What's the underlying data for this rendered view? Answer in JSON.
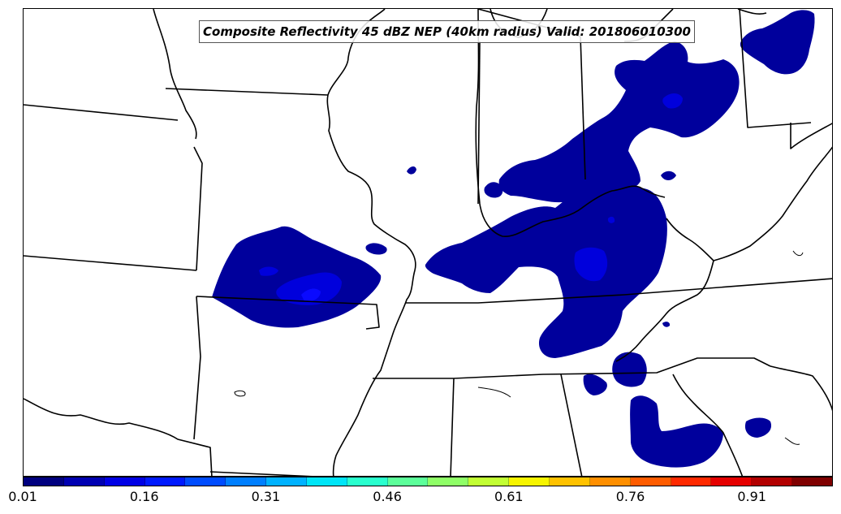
{
  "map": {
    "title": "Composite Reflectivity 45 dBZ NEP (40km radius) Valid: 201806010300",
    "field": "Neighborhood exceedance probability",
    "colors": {
      "probability_low": "#00009c",
      "probability_mid": "#0000dc",
      "probability_high": "#0a0aff",
      "borders": "#000000",
      "background": "#ffffff"
    }
  },
  "colorbar": {
    "colors": [
      "#00007f",
      "#0000b2",
      "#0000e5",
      "#0019ff",
      "#004cff",
      "#007fff",
      "#00b2ff",
      "#00e5f7",
      "#29ffce",
      "#5cff9a",
      "#8fff67",
      "#c2ff33",
      "#f7f500",
      "#ffc200",
      "#ff8f00",
      "#ff5c00",
      "#ff2900",
      "#e50000",
      "#b20000",
      "#7f0000"
    ],
    "tick_labels": [
      {
        "label": "0.01",
        "value": 0.01
      },
      {
        "label": "0.16",
        "value": 0.16
      },
      {
        "label": "0.31",
        "value": 0.31
      },
      {
        "label": "0.46",
        "value": 0.46
      },
      {
        "label": "0.61",
        "value": 0.61
      },
      {
        "label": "0.76",
        "value": 0.76
      },
      {
        "label": "0.91",
        "value": 0.91
      }
    ],
    "range": [
      0.01,
      1.01
    ]
  }
}
